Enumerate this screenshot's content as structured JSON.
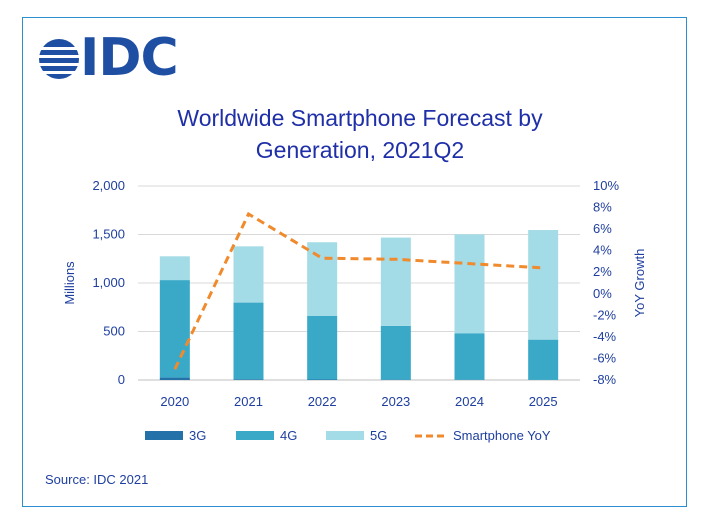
{
  "brand": {
    "logo_text": "IDC"
  },
  "colors": {
    "g3": "#2471a9",
    "g4": "#3aa9c8",
    "g5": "#a3dbe6",
    "yoy": "#f08a2d",
    "text": "#1f3f9f",
    "border": "#2b8fd0",
    "grid": "#d9d9d9"
  },
  "source": "Source: IDC 2021",
  "chart_data": {
    "type": "bar",
    "stacked": true,
    "title_lines": [
      "Worldwide Smartphone Forecast by",
      "Generation, 2021Q2"
    ],
    "categories": [
      "2020",
      "2021",
      "2022",
      "2023",
      "2024",
      "2025"
    ],
    "series": [
      {
        "name": "3G",
        "values": [
          25,
          8,
          5,
          3,
          2,
          1
        ]
      },
      {
        "name": "4G",
        "values": [
          1005,
          790,
          655,
          555,
          480,
          415
        ]
      },
      {
        "name": "5G",
        "values": [
          245,
          580,
          760,
          910,
          1020,
          1130
        ]
      }
    ],
    "line_series": {
      "name": "Smartphone YoY",
      "values": [
        -7.0,
        7.4,
        3.3,
        3.2,
        2.8,
        2.4
      ],
      "axis": "right",
      "dashed": true
    },
    "ylabel": "Millions",
    "y2label": "YoY Growth",
    "ylim": [
      0,
      2000
    ],
    "yticks": [
      "0",
      "500",
      "1,000",
      "1,500",
      "2,000"
    ],
    "y2lim": [
      -8,
      10
    ],
    "y2ticks": [
      "-8%",
      "-6%",
      "-4%",
      "-2%",
      "0%",
      "2%",
      "4%",
      "6%",
      "8%",
      "10%"
    ],
    "legend_position": "bottom",
    "grid": true
  }
}
